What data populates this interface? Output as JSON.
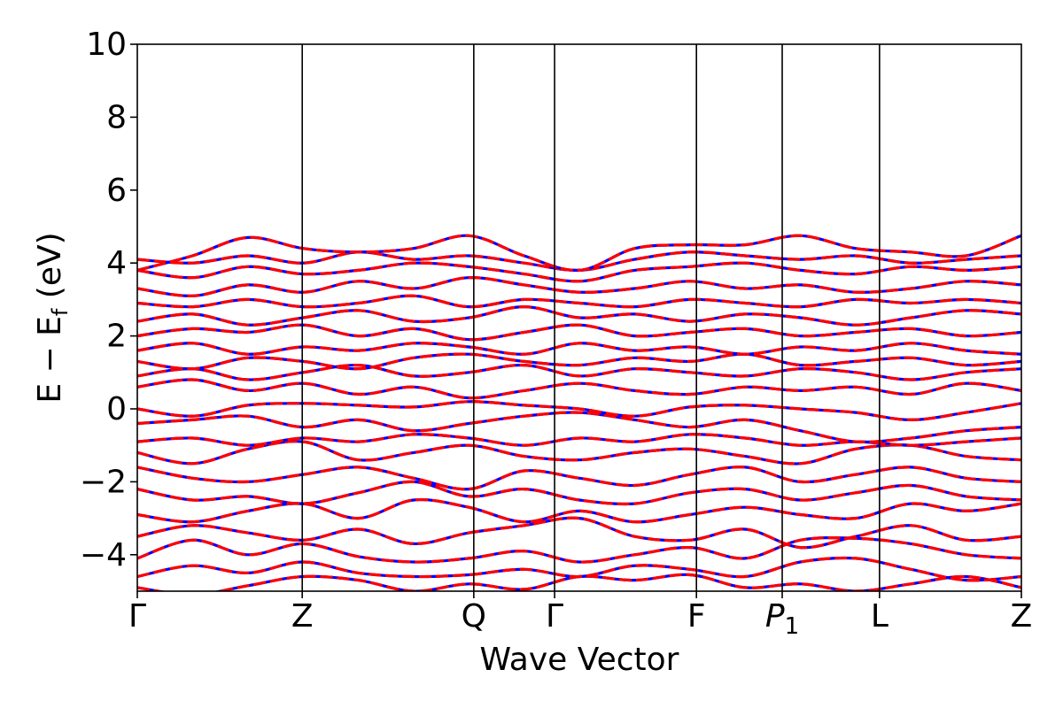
{
  "chart_data": {
    "type": "line",
    "xlabel": "Wave Vector",
    "ylabel": "E − E",
    "ylabel_sub": "f",
    "ylabel_unit": " (eV)",
    "ylim": [
      -5,
      10
    ],
    "yticks": [
      -4,
      -2,
      0,
      2,
      4,
      6,
      8,
      10
    ],
    "ytick_labels": [
      "−4",
      "−2",
      "0",
      "2",
      "4",
      "6",
      "8",
      "10"
    ],
    "grid": false,
    "kpath": {
      "positions": [
        0,
        1.0,
        2.04,
        2.53,
        3.39,
        3.91,
        4.5,
        5.36
      ],
      "labels": [
        "Γ",
        "Z",
        "Q",
        "Γ",
        "F",
        "P",
        "L",
        "Z"
      ],
      "label_subscripts": [
        "",
        "",
        "",
        "",
        "",
        "1",
        "",
        ""
      ],
      "label_italic": [
        false,
        false,
        false,
        false,
        false,
        true,
        false,
        false
      ]
    },
    "series": [],
    "bands_spin_up": [
      [
        -4.9,
        -5.1,
        -4.85,
        -4.6,
        -4.7,
        -5.0,
        -4.8,
        -4.95,
        -4.6,
        -4.7,
        -4.55,
        -4.9,
        -4.8,
        -5.0,
        -4.8,
        -4.6,
        -4.9
      ],
      [
        -4.6,
        -4.3,
        -4.5,
        -4.2,
        -4.5,
        -4.6,
        -4.55,
        -4.4,
        -4.6,
        -4.3,
        -4.4,
        -4.6,
        -4.2,
        -4.1,
        -4.4,
        -4.7,
        -4.6
      ],
      [
        -4.1,
        -3.6,
        -4.0,
        -3.7,
        -4.05,
        -4.2,
        -4.1,
        -3.9,
        -4.2,
        -4.0,
        -3.8,
        -4.1,
        -3.6,
        -3.55,
        -3.7,
        -4.0,
        -4.1
      ],
      [
        -3.5,
        -3.2,
        -3.4,
        -3.6,
        -3.3,
        -3.7,
        -3.4,
        -3.2,
        -3.0,
        -3.5,
        -3.6,
        -3.3,
        -3.8,
        -3.5,
        -3.2,
        -3.6,
        -3.5
      ],
      [
        -2.9,
        -3.1,
        -2.8,
        -2.6,
        -3.0,
        -2.5,
        -2.7,
        -3.1,
        -2.8,
        -3.1,
        -2.9,
        -2.7,
        -2.9,
        -3.0,
        -2.6,
        -2.8,
        -2.6
      ],
      [
        -2.2,
        -2.5,
        -2.4,
        -2.6,
        -2.3,
        -2.0,
        -2.4,
        -2.2,
        -2.5,
        -2.6,
        -2.3,
        -2.2,
        -2.5,
        -2.3,
        -2.1,
        -2.4,
        -2.5
      ],
      [
        -1.6,
        -1.9,
        -2.0,
        -1.8,
        -1.6,
        -1.9,
        -2.2,
        -1.7,
        -1.9,
        -2.1,
        -1.8,
        -1.6,
        -2.0,
        -1.8,
        -1.6,
        -1.9,
        -2.0
      ],
      [
        -1.2,
        -1.5,
        -1.1,
        -0.9,
        -1.4,
        -1.2,
        -1.0,
        -1.3,
        -1.4,
        -1.2,
        -1.1,
        -1.3,
        -1.5,
        -1.1,
        -1.0,
        -1.3,
        -1.4
      ],
      [
        -0.9,
        -0.8,
        -1.0,
        -0.8,
        -0.9,
        -0.7,
        -0.8,
        -1.0,
        -0.8,
        -0.9,
        -0.7,
        -0.8,
        -1.0,
        -0.9,
        -1.0,
        -0.9,
        -0.8
      ],
      [
        -0.4,
        -0.3,
        -0.2,
        -0.5,
        -0.3,
        -0.6,
        -0.4,
        -0.2,
        -0.1,
        -0.3,
        -0.5,
        -0.3,
        -0.6,
        -0.9,
        -0.8,
        -0.6,
        -0.5
      ],
      [
        0.0,
        -0.2,
        0.1,
        0.15,
        0.1,
        0.05,
        0.2,
        0.1,
        0.0,
        -0.2,
        0.05,
        0.1,
        0.0,
        -0.1,
        -0.3,
        -0.1,
        0.15
      ],
      [
        0.6,
        0.8,
        0.5,
        0.7,
        0.4,
        0.6,
        0.3,
        0.5,
        0.7,
        0.5,
        0.4,
        0.6,
        0.5,
        0.6,
        0.4,
        0.7,
        0.5
      ],
      [
        0.9,
        1.1,
        0.8,
        1.0,
        1.2,
        0.9,
        1.0,
        1.2,
        0.9,
        1.1,
        1.0,
        0.9,
        1.1,
        1.0,
        0.8,
        1.0,
        1.1
      ],
      [
        1.3,
        1.1,
        1.4,
        1.3,
        1.1,
        1.4,
        1.5,
        1.3,
        1.2,
        1.4,
        1.3,
        1.5,
        1.2,
        1.3,
        1.4,
        1.2,
        1.3
      ],
      [
        1.6,
        1.8,
        1.5,
        1.7,
        1.6,
        1.8,
        1.7,
        1.5,
        1.8,
        1.6,
        1.7,
        1.5,
        1.7,
        1.6,
        1.8,
        1.6,
        1.5
      ],
      [
        2.0,
        2.2,
        2.1,
        2.3,
        2.0,
        2.2,
        1.9,
        2.1,
        2.3,
        2.0,
        2.1,
        2.2,
        2.0,
        2.1,
        2.2,
        2.0,
        2.1
      ],
      [
        2.4,
        2.6,
        2.3,
        2.5,
        2.7,
        2.4,
        2.5,
        2.8,
        2.5,
        2.6,
        2.4,
        2.6,
        2.5,
        2.3,
        2.5,
        2.7,
        2.6
      ],
      [
        2.9,
        2.8,
        3.0,
        2.8,
        2.9,
        3.1,
        2.8,
        3.0,
        2.9,
        2.8,
        3.0,
        2.9,
        2.8,
        3.0,
        2.9,
        3.0,
        2.9
      ],
      [
        3.3,
        3.1,
        3.4,
        3.2,
        3.5,
        3.3,
        3.6,
        3.4,
        3.2,
        3.3,
        3.5,
        3.3,
        3.4,
        3.2,
        3.3,
        3.5,
        3.4
      ],
      [
        3.8,
        3.6,
        3.9,
        3.7,
        3.8,
        4.0,
        3.9,
        3.7,
        3.5,
        3.8,
        3.9,
        4.0,
        3.8,
        3.7,
        3.9,
        3.8,
        3.9
      ],
      [
        4.1,
        4.0,
        4.2,
        4.0,
        4.3,
        4.1,
        4.2,
        4.0,
        3.8,
        4.1,
        4.3,
        4.2,
        4.1,
        4.2,
        4.0,
        4.1,
        4.2
      ],
      [
        3.8,
        4.2,
        4.7,
        4.4,
        4.3,
        4.4,
        4.75,
        4.2,
        3.8,
        4.4,
        4.5,
        4.5,
        4.75,
        4.4,
        4.3,
        4.2,
        4.75
      ]
    ],
    "spin_up_color": "#0000ff",
    "spin_down_color": "#ff0000",
    "spin_down_style": "dashed"
  }
}
